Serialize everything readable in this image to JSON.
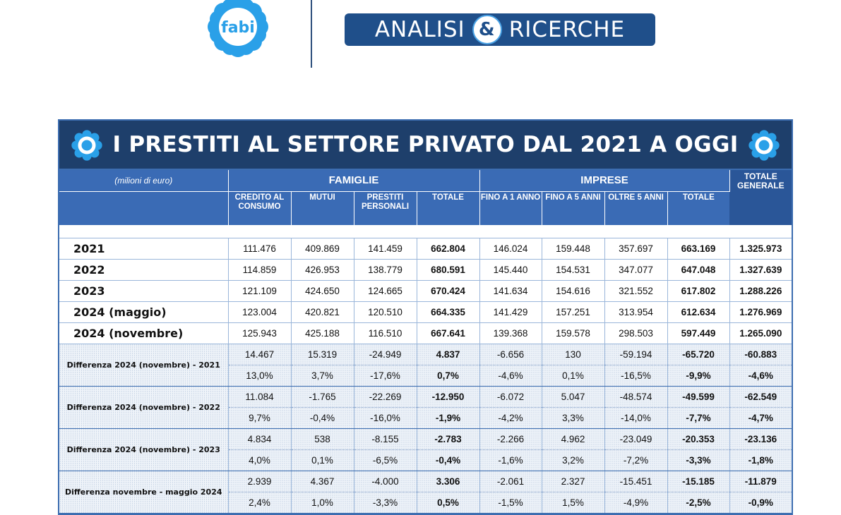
{
  "brand": {
    "logo_text": "fabi",
    "banner_left": "ANALISI",
    "banner_amp": "&",
    "banner_right": "RICERCHE"
  },
  "colors": {
    "navy": "#1e3f6b",
    "header_blue": "#3a6bb5",
    "accent": "#4aa3e6"
  },
  "table": {
    "title": "I PRESTITI AL SETTORE PRIVATO DAL 2021 A OGGI",
    "unit_label": "(milioni di euro)",
    "groups": {
      "famiglie": "FAMIGLIE",
      "imprese": "IMPRESE",
      "totale": "TOTALE GENERALE"
    },
    "columns": [
      "CREDITO AL CONSUMO",
      "MUTUI",
      "PRESTITI PERSONALI",
      "TOTALE",
      "FINO A 1 ANNO",
      "FINO A 5 ANNI",
      "OLTRE 5 ANNI",
      "TOTALE"
    ],
    "years": [
      {
        "label": "2021",
        "values": [
          "111.476",
          "409.869",
          "141.459",
          "662.804",
          "146.024",
          "159.448",
          "357.697",
          "663.169",
          "1.325.973"
        ]
      },
      {
        "label": "2022",
        "values": [
          "114.859",
          "426.953",
          "138.779",
          "680.591",
          "145.440",
          "154.531",
          "347.077",
          "647.048",
          "1.327.639"
        ]
      },
      {
        "label": "2023",
        "values": [
          "121.109",
          "424.650",
          "124.665",
          "670.424",
          "141.634",
          "154.616",
          "321.552",
          "617.802",
          "1.288.226"
        ]
      },
      {
        "label": "2024 (maggio)",
        "values": [
          "123.004",
          "420.821",
          "120.510",
          "664.335",
          "141.429",
          "157.251",
          "313.954",
          "612.634",
          "1.276.969"
        ]
      },
      {
        "label": "2024 (novembre)",
        "values": [
          "125.943",
          "425.188",
          "116.510",
          "667.641",
          "139.368",
          "159.578",
          "298.503",
          "597.449",
          "1.265.090"
        ]
      }
    ],
    "diffs": [
      {
        "label": "Differenza 2024 (novembre) - 2021",
        "abs": [
          "14.467",
          "15.319",
          "-24.949",
          "4.837",
          "-6.656",
          "130",
          "-59.194",
          "-65.720",
          "-60.883"
        ],
        "pct": [
          "13,0%",
          "3,7%",
          "-17,6%",
          "0,7%",
          "-4,6%",
          "0,1%",
          "-16,5%",
          "-9,9%",
          "-4,6%"
        ]
      },
      {
        "label": "Differenza 2024 (novembre) - 2022",
        "abs": [
          "11.084",
          "-1.765",
          "-22.269",
          "-12.950",
          "-6.072",
          "5.047",
          "-48.574",
          "-49.599",
          "-62.549"
        ],
        "pct": [
          "9,7%",
          "-0,4%",
          "-16,0%",
          "-1,9%",
          "-4,2%",
          "3,3%",
          "-14,0%",
          "-7,7%",
          "-4,7%"
        ]
      },
      {
        "label": "Differenza 2024 (novembre) - 2023",
        "abs": [
          "4.834",
          "538",
          "-8.155",
          "-2.783",
          "-2.266",
          "4.962",
          "-23.049",
          "-20.353",
          "-23.136"
        ],
        "pct": [
          "4,0%",
          "0,1%",
          "-6,5%",
          "-0,4%",
          "-1,6%",
          "3,2%",
          "-7,2%",
          "-3,3%",
          "-1,8%"
        ]
      },
      {
        "label": "Differenza novembre - maggio 2024",
        "abs": [
          "2.939",
          "4.367",
          "-4.000",
          "3.306",
          "-2.061",
          "2.327",
          "-15.451",
          "-15.185",
          "-11.879"
        ],
        "pct": [
          "2,4%",
          "1,0%",
          "-3,3%",
          "0,5%",
          "-1,5%",
          "1,5%",
          "-4,9%",
          "-2,5%",
          "-0,9%"
        ]
      }
    ]
  }
}
